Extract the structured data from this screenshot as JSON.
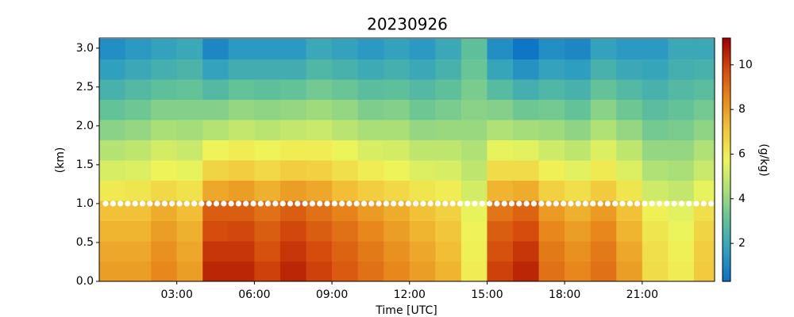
{
  "chart_data": {
    "type": "heatmap",
    "title": "20230926",
    "x_label": "Time [UTC]",
    "y_label": "(km)",
    "colorbar_label": "(g/kg)",
    "x": [
      0.5,
      1.5,
      2.5,
      3.5,
      4.5,
      5.5,
      6.5,
      7.5,
      8.5,
      9.5,
      10.5,
      11.5,
      12.5,
      13.5,
      14.5,
      15.5,
      16.5,
      17.5,
      18.5,
      19.5,
      20.5,
      21.5,
      22.5,
      23.5
    ],
    "y": [
      0.13,
      0.39,
      0.65,
      0.91,
      1.17,
      1.43,
      1.69,
      1.95,
      2.21,
      2.47,
      2.73,
      2.99
    ],
    "z": [
      [
        8,
        8,
        8.5,
        8,
        10.5,
        10.5,
        10,
        10.5,
        10,
        9.5,
        9,
        8.5,
        8,
        7.5,
        6,
        10,
        10.5,
        9,
        8.5,
        9,
        8,
        6.5,
        6,
        7
      ],
      [
        7.8,
        7.8,
        8.3,
        7.8,
        10.2,
        10.2,
        9.7,
        10.2,
        9.8,
        9.3,
        8.8,
        8.3,
        7.8,
        7.3,
        5.9,
        9.7,
        10.2,
        8.8,
        8.3,
        8.8,
        7.8,
        6.4,
        5.9,
        6.9
      ],
      [
        7.5,
        7.5,
        8.0,
        7.6,
        9.8,
        9.9,
        9.4,
        9.9,
        9.4,
        9.0,
        8.5,
        8.0,
        7.5,
        7.1,
        5.8,
        9.4,
        9.8,
        8.5,
        8.0,
        8.5,
        7.5,
        6.2,
        5.7,
        6.7
      ],
      [
        7.2,
        7.2,
        7.7,
        7.3,
        9.4,
        9.4,
        9.0,
        9.4,
        9.0,
        8.6,
        8.1,
        7.7,
        7.2,
        6.8,
        5.6,
        8.9,
        9.3,
        8.1,
        7.6,
        8.1,
        7.2,
        5.9,
        5.5,
        6.4
      ],
      [
        6.1,
        6.2,
        6.6,
        6.3,
        7.8,
        8.0,
        7.6,
        8.0,
        7.8,
        7.3,
        6.9,
        6.6,
        6.2,
        6.0,
        5.2,
        7.5,
        7.7,
        6.8,
        6.4,
        7.0,
        6.2,
        5.1,
        4.9,
        5.6
      ],
      [
        5.3,
        5.4,
        5.8,
        5.6,
        6.7,
        6.9,
        6.6,
        6.9,
        6.8,
        6.4,
        6.0,
        5.8,
        5.4,
        5.3,
        4.8,
        6.5,
        6.5,
        5.9,
        5.5,
        6.1,
        5.4,
        4.5,
        4.4,
        5.0
      ],
      [
        4.6,
        4.8,
        5.2,
        5.0,
        5.8,
        6.0,
        5.8,
        6.0,
        6.0,
        5.7,
        5.3,
        5.2,
        4.8,
        4.8,
        4.5,
        5.6,
        5.5,
        5.1,
        4.8,
        5.4,
        4.8,
        4.0,
        4.0,
        4.5
      ],
      [
        3.8,
        4.0,
        4.4,
        4.3,
        4.6,
        4.9,
        4.7,
        4.9,
        5.0,
        4.7,
        4.4,
        4.4,
        4.0,
        4.1,
        4.1,
        4.5,
        4.3,
        4.2,
        3.9,
        4.5,
        4.0,
        3.4,
        3.5,
        3.9
      ],
      [
        3.1,
        3.3,
        3.7,
        3.7,
        3.7,
        4.0,
        3.9,
        4.0,
        4.2,
        4.0,
        3.6,
        3.7,
        3.3,
        3.5,
        3.8,
        3.7,
        3.3,
        3.4,
        3.1,
        3.8,
        3.3,
        2.9,
        3.1,
        3.4
      ],
      [
        2.4,
        2.7,
        3.0,
        3.1,
        2.7,
        3.1,
        3.0,
        3.1,
        3.4,
        3.2,
        2.9,
        3.0,
        2.7,
        3.0,
        3.5,
        2.8,
        2.3,
        2.6,
        2.4,
        3.1,
        2.7,
        2.4,
        2.7,
        2.9
      ],
      [
        1.7,
        2.0,
        2.3,
        2.5,
        1.8,
        2.2,
        2.2,
        2.2,
        2.6,
        2.4,
        2.1,
        2.3,
        2.0,
        2.4,
        3.2,
        1.9,
        1.3,
        1.8,
        1.6,
        2.4,
        2.0,
        1.9,
        2.3,
        2.4
      ],
      [
        1.2,
        1.5,
        1.8,
        2,
        1,
        1.5,
        1.5,
        1.5,
        2,
        1.8,
        1.5,
        1.8,
        1.5,
        2,
        3,
        1.2,
        0.5,
        1.2,
        1,
        1.8,
        1.5,
        1.5,
        2,
        2
      ]
    ],
    "xlim": [
      0,
      23.8
    ],
    "ylim": [
      0,
      3.13
    ],
    "xticks": [
      {
        "value": 3,
        "label": "03:00"
      },
      {
        "value": 6,
        "label": "06:00"
      },
      {
        "value": 9,
        "label": "09:00"
      },
      {
        "value": 12,
        "label": "12:00"
      },
      {
        "value": 15,
        "label": "15:00"
      },
      {
        "value": 18,
        "label": "18:00"
      },
      {
        "value": 21,
        "label": "21:00"
      }
    ],
    "yticks": [
      {
        "value": 0,
        "label": "0.0"
      },
      0.5,
      {
        "value": 1,
        "label": "1.0"
      },
      1.5,
      {
        "value": 2,
        "label": "2.0"
      },
      2.5,
      {
        "value": 3,
        "label": "3.0"
      }
    ],
    "clim": [
      0.3,
      11.2
    ],
    "cticks": [
      2,
      4,
      6,
      8,
      10
    ],
    "colorscale": [
      "#0a6ec8",
      "#2f9fc0",
      "#5fc09a",
      "#a9df78",
      "#eef55a",
      "#f2c63a",
      "#e8891c",
      "#d44a0c",
      "#a00000"
    ],
    "reference_line": {
      "y": 1.0,
      "color": "#ffffff"
    }
  }
}
